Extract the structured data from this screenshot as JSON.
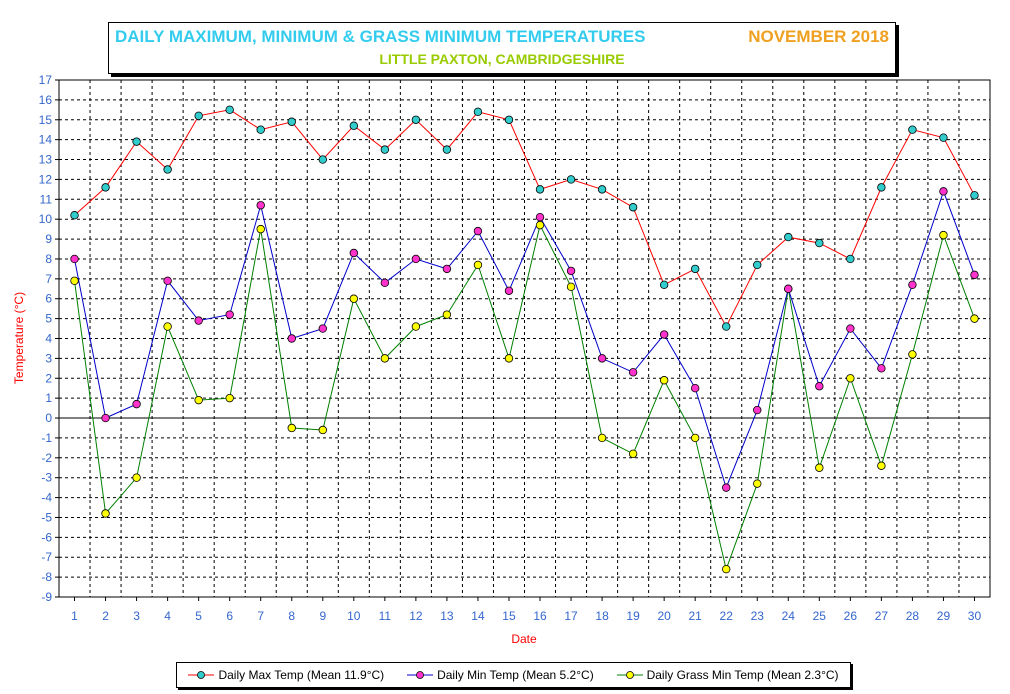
{
  "title": {
    "main": "DAILY MAXIMUM, MINIMUM & GRASS MINIMUM TEMPERATURES",
    "period": "NOVEMBER 2018",
    "location": "LITTLE PAXTON, CAMBRIDGESHIRE"
  },
  "colors": {
    "max": "#ff0000",
    "min": "#0000cc",
    "grass": "#008000",
    "max_marker": "#33cccc",
    "min_marker": "#ff33cc",
    "grass_marker": "#ffff00",
    "tick_label": "#3366cc",
    "axis_title": "#ff0000"
  },
  "chart_data": {
    "type": "line",
    "xlabel": "Date",
    "ylabel": "Temperature (°C)",
    "ylim": [
      -9,
      17
    ],
    "xlim": [
      1,
      30
    ],
    "grid": true,
    "legend_position": "bottom",
    "x": [
      1,
      2,
      3,
      4,
      5,
      6,
      7,
      8,
      9,
      10,
      11,
      12,
      13,
      14,
      15,
      16,
      17,
      18,
      19,
      20,
      21,
      22,
      23,
      24,
      25,
      26,
      27,
      28,
      29,
      30
    ],
    "series": [
      {
        "name": "Daily Max Temp (Mean 11.9°C)",
        "values": [
          10.2,
          11.6,
          13.9,
          12.5,
          15.2,
          15.5,
          14.5,
          14.9,
          13.0,
          14.7,
          13.5,
          15.0,
          13.5,
          15.4,
          15.0,
          11.5,
          12.0,
          11.5,
          10.6,
          6.7,
          7.5,
          4.6,
          7.7,
          9.1,
          8.8,
          8.0,
          11.6,
          14.5,
          14.1,
          11.2
        ]
      },
      {
        "name": "Daily Min Temp (Mean 5.2°C)",
        "values": [
          8.0,
          0.0,
          0.7,
          6.9,
          4.9,
          5.2,
          10.7,
          4.0,
          4.5,
          8.3,
          6.8,
          8.0,
          7.5,
          9.4,
          6.4,
          10.1,
          7.4,
          3.0,
          2.3,
          4.2,
          1.5,
          -3.5,
          0.4,
          6.5,
          1.6,
          4.5,
          2.5,
          6.7,
          11.4,
          7.2
        ]
      },
      {
        "name": "Daily Grass Min Temp (Mean 2.3°C)",
        "values": [
          6.9,
          -4.8,
          -3.0,
          4.6,
          0.9,
          1.0,
          9.5,
          -0.5,
          -0.6,
          6.0,
          3.0,
          4.6,
          5.2,
          7.7,
          3.0,
          9.7,
          6.6,
          -1.0,
          -1.8,
          1.9,
          -1.0,
          -7.6,
          -3.3,
          6.5,
          -2.5,
          2.0,
          -2.4,
          3.2,
          9.2,
          5.0
        ]
      }
    ]
  }
}
